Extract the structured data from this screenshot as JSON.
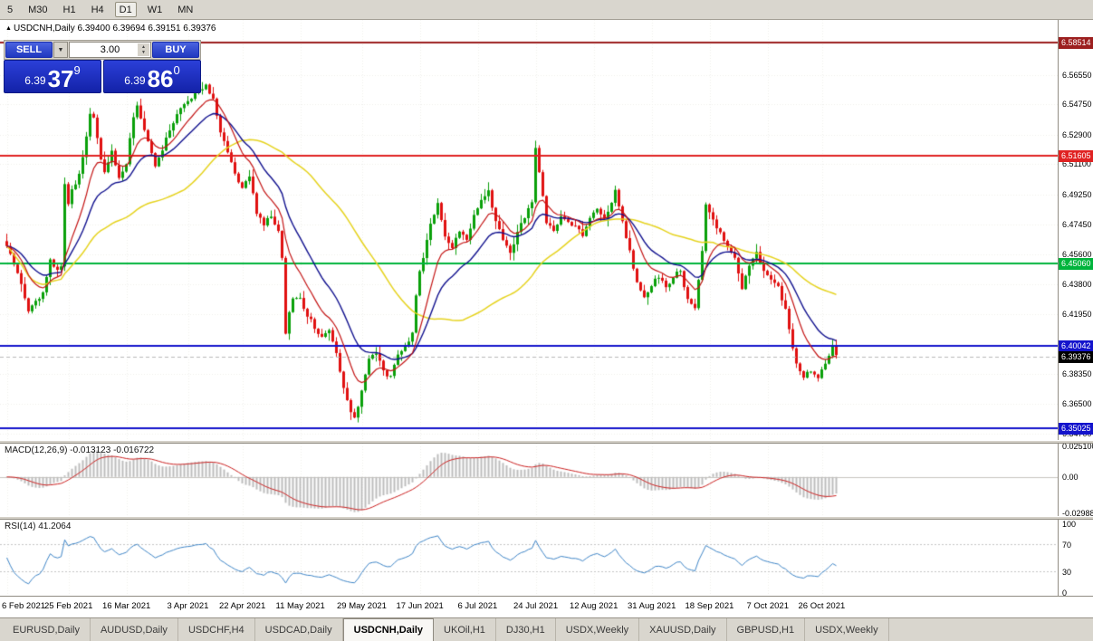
{
  "toolbar": {
    "timeframes": [
      {
        "label": "5",
        "active": false
      },
      {
        "label": "M30",
        "active": false
      },
      {
        "label": "H1",
        "active": false
      },
      {
        "label": "H4",
        "active": false
      },
      {
        "label": "D1",
        "active": true
      },
      {
        "label": "W1",
        "active": false
      },
      {
        "label": "MN",
        "active": false
      }
    ]
  },
  "chart_header": {
    "symbol": "USDCNH,Daily",
    "ohlc": "6.39400 6.39694 6.39151 6.39376"
  },
  "trade_panel": {
    "sell_label": "SELL",
    "buy_label": "BUY",
    "volume": "3.00",
    "sell_price": {
      "prefix": "6.39",
      "big": "37",
      "sup": "9"
    },
    "buy_price": {
      "prefix": "6.39",
      "big": "86",
      "sup": "0"
    }
  },
  "indicators": {
    "macd_label": "MACD(12,26,9) -0.013123 -0.016722",
    "rsi_label": "RSI(14) 41.2064"
  },
  "axes": {
    "price_ticks": [
      "6.56550",
      "6.54750",
      "6.52900",
      "6.51100",
      "6.49250",
      "6.47450",
      "6.45600",
      "6.43800",
      "6.41950",
      "6.38350",
      "6.36500",
      "6.34700"
    ],
    "macd_ticks": [
      "0.025100",
      "0.00",
      "-0.029880"
    ],
    "rsi_ticks": [
      "100",
      "70",
      "30",
      "0"
    ],
    "dates": [
      "6 Feb 2021",
      "25 Feb 2021",
      "16 Mar 2021",
      "3 Apr 2021",
      "22 Apr 2021",
      "11 May 2021",
      "29 May 2021",
      "17 Jun 2021",
      "6 Jul 2021",
      "24 Jul 2021",
      "12 Aug 2021",
      "31 Aug 2021",
      "18 Sep 2021",
      "7 Oct 2021",
      "26 Oct 2021"
    ]
  },
  "levels": [
    {
      "price": 6.58514,
      "label": "6.58514",
      "color": "#9c1f1f",
      "width": 2
    },
    {
      "price": 6.51605,
      "label": "6.51605",
      "color": "#e02222",
      "width": 2
    },
    {
      "price": 6.4506,
      "label": "6.45060",
      "color": "#00b43c",
      "width": 2
    },
    {
      "price": 6.40042,
      "label": "6.40042",
      "color": "#1414cc",
      "width": 2
    },
    {
      "price": 6.35025,
      "label": "6.35025",
      "color": "#1414cc",
      "width": 2
    }
  ],
  "current_price": {
    "value": 6.39376,
    "label": "6.39376",
    "color": "#000000"
  },
  "tabs": [
    {
      "label": "EURUSD,Daily",
      "active": false
    },
    {
      "label": "AUDUSD,Daily",
      "active": false
    },
    {
      "label": "USDCHF,H4",
      "active": false
    },
    {
      "label": "USDCAD,Daily",
      "active": false
    },
    {
      "label": "USDCNH,Daily",
      "active": true
    },
    {
      "label": "UKOil,H1",
      "active": false
    },
    {
      "label": "DJ30,H1",
      "active": false
    },
    {
      "label": "USDX,Weekly",
      "active": false
    },
    {
      "label": "XAUUSD,Daily",
      "active": false
    },
    {
      "label": "GBPUSD,H1",
      "active": false
    },
    {
      "label": "USDX,Weekly",
      "active": false
    }
  ],
  "chart_data": {
    "type": "candlestick",
    "symbol": "USDCNH",
    "timeframe": "Daily",
    "ohlc_current": {
      "open": 6.394,
      "high": 6.39694,
      "low": 6.39151,
      "close": 6.39376
    },
    "candle_count": 230,
    "up_color": "#0aa00a",
    "down_color": "#e01010",
    "date_tick_indices": [
      0,
      17,
      33,
      50,
      65,
      81,
      98,
      114,
      130,
      146,
      162,
      178,
      194,
      210,
      225
    ],
    "price_anchors": [
      [
        0,
        6.462
      ],
      [
        2,
        6.45
      ],
      [
        4,
        6.438
      ],
      [
        6,
        6.421
      ],
      [
        8,
        6.427
      ],
      [
        10,
        6.433
      ],
      [
        12,
        6.452
      ],
      [
        14,
        6.446
      ],
      [
        15,
        6.45
      ],
      [
        16,
        6.5
      ],
      [
        17,
        6.488
      ],
      [
        18,
        6.495
      ],
      [
        20,
        6.505
      ],
      [
        22,
        6.528
      ],
      [
        23,
        6.543
      ],
      [
        24,
        6.54
      ],
      [
        26,
        6.515
      ],
      [
        27,
        6.505
      ],
      [
        29,
        6.518
      ],
      [
        31,
        6.503
      ],
      [
        33,
        6.512
      ],
      [
        35,
        6.54
      ],
      [
        36,
        6.546
      ],
      [
        37,
        6.538
      ],
      [
        39,
        6.525
      ],
      [
        41,
        6.51
      ],
      [
        43,
        6.52
      ],
      [
        45,
        6.532
      ],
      [
        47,
        6.541
      ],
      [
        49,
        6.548
      ],
      [
        51,
        6.552
      ],
      [
        53,
        6.5565
      ],
      [
        55,
        6.5585
      ],
      [
        56,
        6.553
      ],
      [
        57,
        6.55
      ],
      [
        59,
        6.53
      ],
      [
        61,
        6.519
      ],
      [
        63,
        6.505
      ],
      [
        65,
        6.497
      ],
      [
        67,
        6.503
      ],
      [
        69,
        6.482
      ],
      [
        71,
        6.475
      ],
      [
        73,
        6.479
      ],
      [
        75,
        6.47
      ],
      [
        76,
        6.455
      ],
      [
        77,
        6.408
      ],
      [
        78,
        6.422
      ],
      [
        79,
        6.428
      ],
      [
        81,
        6.429
      ],
      [
        83,
        6.419
      ],
      [
        85,
        6.412
      ],
      [
        87,
        6.405
      ],
      [
        89,
        6.41
      ],
      [
        91,
        6.396
      ],
      [
        93,
        6.374
      ],
      [
        95,
        6.36
      ],
      [
        96,
        6.357
      ],
      [
        98,
        6.372
      ],
      [
        100,
        6.392
      ],
      [
        102,
        6.396
      ],
      [
        104,
        6.385
      ],
      [
        106,
        6.381
      ],
      [
        108,
        6.395
      ],
      [
        110,
        6.4
      ],
      [
        112,
        6.408
      ],
      [
        113,
        6.43
      ],
      [
        114,
        6.446
      ],
      [
        115,
        6.455
      ],
      [
        117,
        6.476
      ],
      [
        119,
        6.487
      ],
      [
        121,
        6.467
      ],
      [
        123,
        6.46
      ],
      [
        125,
        6.471
      ],
      [
        127,
        6.466
      ],
      [
        129,
        6.48
      ],
      [
        131,
        6.488
      ],
      [
        133,
        6.494
      ],
      [
        135,
        6.476
      ],
      [
        137,
        6.466
      ],
      [
        139,
        6.456
      ],
      [
        141,
        6.47
      ],
      [
        143,
        6.478
      ],
      [
        145,
        6.488
      ],
      [
        146,
        6.522
      ],
      [
        147,
        6.507
      ],
      [
        149,
        6.476
      ],
      [
        151,
        6.47
      ],
      [
        153,
        6.478
      ],
      [
        155,
        6.476
      ],
      [
        157,
        6.473
      ],
      [
        159,
        6.468
      ],
      [
        161,
        6.478
      ],
      [
        163,
        6.485
      ],
      [
        165,
        6.478
      ],
      [
        167,
        6.488
      ],
      [
        168,
        6.495
      ],
      [
        169,
        6.486
      ],
      [
        170,
        6.476
      ],
      [
        172,
        6.458
      ],
      [
        174,
        6.438
      ],
      [
        176,
        6.43
      ],
      [
        178,
        6.438
      ],
      [
        180,
        6.443
      ],
      [
        182,
        6.436
      ],
      [
        184,
        6.443
      ],
      [
        186,
        6.446
      ],
      [
        188,
        6.428
      ],
      [
        190,
        6.423
      ],
      [
        192,
        6.458
      ],
      [
        193,
        6.486
      ],
      [
        195,
        6.477
      ],
      [
        197,
        6.469
      ],
      [
        199,
        6.461
      ],
      [
        201,
        6.454
      ],
      [
        203,
        6.434
      ],
      [
        205,
        6.45
      ],
      [
        207,
        6.458
      ],
      [
        209,
        6.446
      ],
      [
        211,
        6.441
      ],
      [
        213,
        6.436
      ],
      [
        215,
        6.422
      ],
      [
        217,
        6.4
      ],
      [
        218,
        6.389
      ],
      [
        220,
        6.381
      ],
      [
        222,
        6.386
      ],
      [
        224,
        6.381
      ],
      [
        226,
        6.39
      ],
      [
        228,
        6.401
      ],
      [
        229,
        6.3938
      ]
    ],
    "overlays": [
      {
        "name": "ma-fast",
        "type": "ema",
        "period": 10,
        "color": "#c41414"
      },
      {
        "name": "ma-mid",
        "type": "ema",
        "period": 20,
        "color": "#10108e"
      },
      {
        "name": "ma-slow",
        "type": "sma",
        "period": 50,
        "color": "#e6d31e"
      }
    ],
    "macd": {
      "fast": 12,
      "slow": 26,
      "signal": 9,
      "value": -0.013123,
      "signal_value": -0.016722,
      "range": [
        -0.0299,
        0.0251
      ],
      "histogram_color": "#bdbdbd",
      "signal_color": "#cc2020"
    },
    "rsi": {
      "period": 14,
      "value": 41.2064,
      "levels": [
        30,
        70
      ],
      "range": [
        0,
        100
      ],
      "color": "#3f86c8"
    }
  }
}
